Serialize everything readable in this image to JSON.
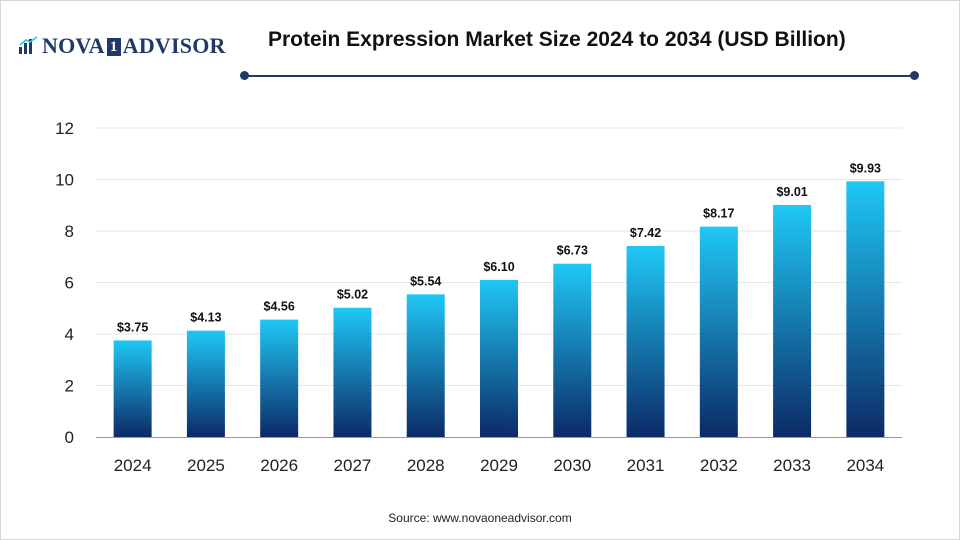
{
  "header": {
    "logo_text_left": "NOVA",
    "logo_text_one": "1",
    "logo_text_right": "ADVISOR",
    "logo_icon": "bar-chart-logo-icon",
    "title": "Protein Expression Market Size 2024 to 2034 (USD Billion)"
  },
  "footer": {
    "source": "Source: www.novaoneadvisor.com"
  },
  "colors": {
    "brand": "#1f3a68",
    "bar_top": "#1fc8f5",
    "bar_bottom": "#0c2a66",
    "grid": "#e6e6e6",
    "axis": "#999999"
  },
  "chart_data": {
    "type": "bar",
    "title": "Protein Expression Market Size 2024 to 2034 (USD Billion)",
    "xlabel": "",
    "ylabel": "",
    "categories": [
      "2024",
      "2025",
      "2026",
      "2027",
      "2028",
      "2029",
      "2030",
      "2031",
      "2032",
      "2033",
      "2034"
    ],
    "values": [
      3.75,
      4.13,
      4.56,
      5.02,
      5.54,
      6.1,
      6.73,
      7.42,
      8.17,
      9.01,
      9.93
    ],
    "data_labels": [
      "$3.75",
      "$4.13",
      "$4.56",
      "$5.02",
      "$5.54",
      "$6.10",
      "$6.73",
      "$7.42",
      "$8.17",
      "$9.01",
      "$9.93"
    ],
    "ylim": [
      0,
      12
    ],
    "yticks": [
      "0",
      "2",
      "4",
      "6",
      "8",
      "10",
      "12"
    ],
    "grid": true,
    "legend": "none"
  }
}
